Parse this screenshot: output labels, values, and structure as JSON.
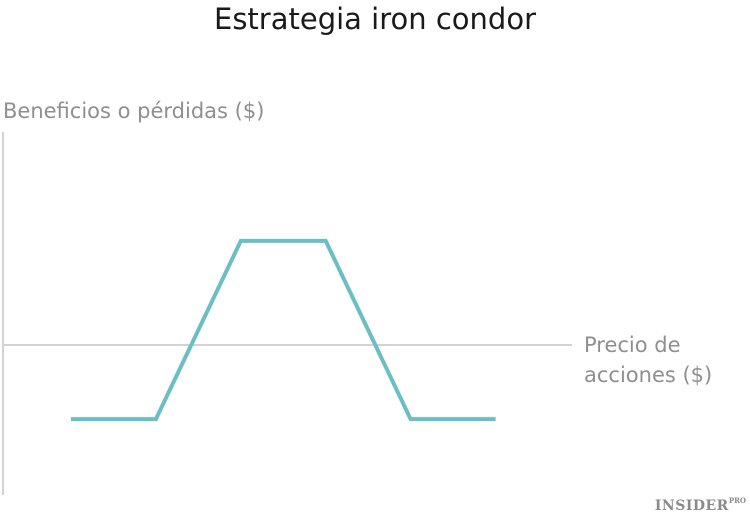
{
  "chart_data": {
    "type": "line",
    "title": "Estrategia iron condor",
    "ylabel": "Beneficios o pérdidas ($)",
    "xlabel": [
      "Precio de",
      "acciones ($)"
    ],
    "x": [
      1,
      2,
      3,
      4,
      5,
      6
    ],
    "y": [
      -1,
      -1,
      1.7,
      1.7,
      -1,
      -1
    ],
    "xlim": [
      0.2,
      6.9
    ],
    "ylim": [
      -2.15,
      3.35
    ],
    "color": "#6bbfc4",
    "grid": false
  },
  "logo": {
    "main": "INSIDER",
    "sup": "PRO"
  }
}
